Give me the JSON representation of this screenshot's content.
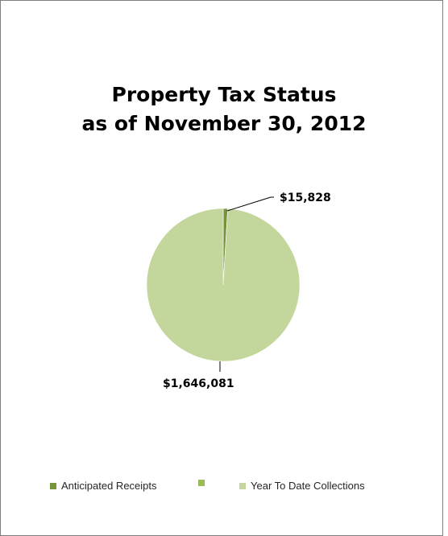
{
  "chart_data": {
    "type": "pie",
    "title_lines": [
      "Property Tax Status",
      "as of November 30, 2012"
    ],
    "slices": [
      {
        "name": "Anticipated Receipts",
        "value": 15828,
        "label": "$15,828",
        "color": "#77933c"
      },
      {
        "name": "",
        "value": 0,
        "label": "",
        "color": "#9bbb59"
      },
      {
        "name": "Year To Date Collections",
        "value": 1646081,
        "label": "$1,646,081",
        "color": "#c3d69b"
      }
    ],
    "legend": {
      "position": "bottom",
      "entries": [
        {
          "label": "Anticipated Receipts",
          "color": "#77933c"
        },
        {
          "label": "",
          "color": "#9bbb59"
        },
        {
          "label": "Year To Date Collections",
          "color": "#c3d69b"
        }
      ]
    }
  }
}
